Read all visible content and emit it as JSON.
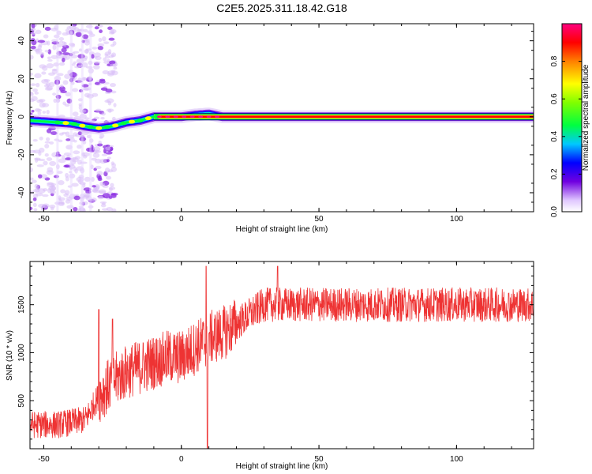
{
  "title": "C2E5.2025.311.18.42.G18",
  "chart_data": [
    {
      "type": "heatmap",
      "xlabel": "Height of straight line (km)",
      "ylabel": "Frequency (Hz)",
      "xlim": [
        -55,
        128
      ],
      "ylim": [
        -50,
        49
      ],
      "xticks": [
        -50,
        0,
        50,
        100
      ],
      "yticks": [
        -40,
        -20,
        0,
        20,
        40
      ],
      "colorbar": {
        "label": "Normalized spectral amplitude",
        "range": [
          0,
          1
        ],
        "ticks": [
          "0.0",
          "0.2",
          "0.4",
          "0.6",
          "0.8"
        ],
        "tick_values": [
          0,
          0.2,
          0.4,
          0.6,
          0.8
        ]
      },
      "signal_track": {
        "x": [
          -55,
          -45,
          -40,
          -35,
          -30,
          -25,
          -20,
          -15,
          -10,
          0,
          5,
          10,
          15,
          128
        ],
        "freq": [
          -2,
          -3,
          -3.5,
          -5,
          -6,
          -5,
          -3,
          -2,
          0,
          0,
          1,
          1.5,
          0,
          0
        ]
      },
      "noise_region_xlim": [
        -55,
        -30
      ],
      "steady_band_xlim": [
        -10,
        128
      ]
    },
    {
      "type": "line",
      "xlabel": "Height of straight line (km)",
      "ylabel": "SNR (10 * v/v)",
      "xlim": [
        -55,
        128
      ],
      "ylim": [
        0,
        1950
      ],
      "xticks": [
        -50,
        0,
        50,
        100
      ],
      "yticks": [
        500,
        1000,
        1500
      ],
      "color": "#ee3333",
      "trend": {
        "x": [
          -55,
          -45,
          -35,
          -30,
          -25,
          -20,
          -15,
          -10,
          -5,
          0,
          5,
          10,
          15,
          20,
          30,
          40,
          60,
          80,
          100,
          128
        ],
        "y": [
          250,
          250,
          300,
          550,
          700,
          800,
          850,
          900,
          950,
          950,
          1050,
          1150,
          1200,
          1300,
          1500,
          1500,
          1500,
          1500,
          1500,
          1500
        ]
      },
      "noise_amplitude": 180,
      "features": [
        {
          "x": -30,
          "y": 1450
        },
        {
          "x": -25,
          "y": 1350
        },
        {
          "x": 9,
          "y": 1900
        },
        {
          "x": 9.5,
          "y": 0
        },
        {
          "x": 35,
          "y": 1900
        }
      ]
    }
  ]
}
